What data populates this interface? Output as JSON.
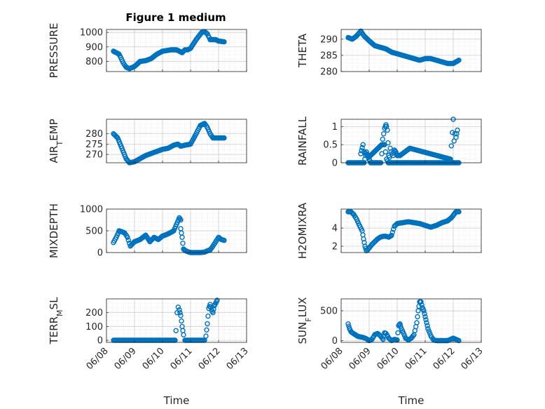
{
  "figure": {
    "title": "Figure 1 medium"
  },
  "chart_data": [
    {
      "type": "scatter",
      "ylabel": "PRESSURE",
      "ylim": [
        730,
        1020
      ],
      "yticks": [
        "800",
        "900",
        "1000"
      ],
      "ytick_values": [
        800,
        900,
        1000
      ],
      "xlim": [
        0,
        5
      ],
      "xticks": [],
      "grid": true,
      "segments": [
        {
          "x": [
            0.25,
            0.45,
            0.6,
            0.7,
            0.82,
            1.0,
            1.2,
            1.4,
            1.6,
            1.8,
            2.0,
            2.3,
            2.5,
            2.7,
            2.8,
            2.9,
            3.0,
            3.2,
            3.4,
            3.5,
            3.6,
            3.7,
            3.9,
            4.0,
            4.2
          ],
          "y": [
            870,
            850,
            790,
            760,
            750,
            765,
            800,
            805,
            820,
            850,
            870,
            880,
            880,
            860,
            880,
            880,
            890,
            950,
            1000,
            1005,
            990,
            950,
            950,
            940,
            935
          ]
        }
      ]
    },
    {
      "type": "scatter",
      "ylabel": "THETA",
      "ylim": [
        280,
        293
      ],
      "yticks": [
        "280",
        "285",
        "290"
      ],
      "ytick_values": [
        280,
        285,
        290
      ],
      "xlim": [
        0,
        5
      ],
      "xticks": [],
      "grid": true,
      "segments": [
        {
          "x": [
            0.25,
            0.4,
            0.55,
            0.7,
            0.82,
            1.0,
            1.2,
            1.4,
            1.6,
            1.8,
            2.0,
            2.2,
            2.4,
            2.6,
            2.8,
            3.0,
            3.2,
            3.4,
            3.6,
            3.8,
            4.0,
            4.2
          ],
          "y": [
            290.5,
            290,
            291,
            292.5,
            291,
            289.5,
            288,
            287.5,
            287,
            286,
            285.5,
            285,
            284.5,
            284,
            283.5,
            284,
            284,
            283.5,
            283,
            282.5,
            282.5,
            283.5
          ]
        }
      ]
    },
    {
      "type": "scatter",
      "ylabel": "AIR_TEMP",
      "ylim": [
        266,
        287
      ],
      "yticks": [
        "270",
        "275",
        "280"
      ],
      "ytick_values": [
        270,
        275,
        280
      ],
      "xlim": [
        0,
        5
      ],
      "xticks": [],
      "grid": true,
      "segments": [
        {
          "x": [
            0.25,
            0.4,
            0.55,
            0.7,
            0.82,
            1.0,
            1.2,
            1.4,
            1.6,
            1.8,
            2.0,
            2.2,
            2.4,
            2.55,
            2.65,
            2.8,
            3.0,
            3.2,
            3.35,
            3.5,
            3.6,
            3.7,
            3.8,
            4.0,
            4.2
          ],
          "y": [
            280,
            278,
            273,
            268,
            266,
            266.5,
            268,
            269.5,
            270.5,
            271.5,
            272.5,
            273,
            274.5,
            275,
            274,
            274.5,
            275,
            280,
            284,
            285,
            283,
            280,
            278,
            278,
            278
          ]
        }
      ]
    },
    {
      "type": "scatter",
      "ylabel": "RAINFALL",
      "ylim": [
        0,
        1.2
      ],
      "yticks": [
        "0",
        "0.5",
        "1"
      ],
      "ytick_values": [
        0,
        0.5,
        1
      ],
      "xlim": [
        0,
        5
      ],
      "xticks": [],
      "grid": true,
      "segments": [
        {
          "x": [
            0.25,
            0.5,
            0.7,
            0.82,
            0.9,
            1.0,
            1.05,
            1.08,
            1.1,
            1.14,
            1.2,
            1.25,
            1.3,
            1.35,
            1.38,
            1.42,
            1.48,
            1.55,
            1.62,
            1.68,
            1.7,
            1.8,
            2.0,
            2.2,
            2.4,
            2.7,
            3.0,
            3.3,
            3.6,
            3.9,
            4.1,
            4.2
          ],
          "y": [
            0,
            0,
            0,
            0,
            0.3,
            0.1,
            0,
            0,
            0,
            0,
            0,
            0,
            0,
            0,
            0,
            0,
            0.5,
            0.5,
            0.1,
            0,
            0,
            0,
            0,
            0,
            0,
            0,
            0,
            0,
            0,
            0,
            0,
            0
          ]
        },
        {
          "x": [
            0.7,
            0.78,
            0.82,
            0.95,
            0.98,
            1.45,
            1.55,
            1.6,
            1.62,
            1.65,
            1.7,
            1.72,
            1.75,
            1.78,
            1.85,
            1.9,
            1.95,
            2.0,
            2.1,
            2.45,
            3.9,
            4.0,
            4.03,
            4.06,
            4.1,
            4.15
          ],
          "y": [
            0.25,
            0.5,
            0.3,
            0.2,
            0.15,
            0.5,
            0.95,
            1.05,
            1.0,
            0.9,
            0.2,
            0.15,
            0.4,
            0.3,
            0.2,
            0.35,
            0.3,
            0.2,
            0.2,
            0.4,
            0.1,
            1.2,
            0.6,
            0.8,
            0.7,
            0.9
          ]
        }
      ]
    },
    {
      "type": "scatter",
      "ylabel": "MIXDEPTH",
      "ylim": [
        0,
        1000
      ],
      "yticks": [
        "0",
        "500",
        "1000"
      ],
      "ytick_values": [
        0,
        500,
        1000
      ],
      "xlim": [
        0,
        5
      ],
      "xticks": [],
      "grid": true,
      "segments": [
        {
          "x": [
            0.25,
            0.35,
            0.45,
            0.55,
            0.65,
            0.75,
            0.85,
            1.0,
            1.2,
            1.4,
            1.55,
            1.7,
            1.85,
            2.0,
            2.2,
            2.4,
            2.5,
            2.6,
            2.65
          ],
          "y": [
            230,
            350,
            500,
            480,
            450,
            350,
            150,
            250,
            300,
            400,
            250,
            350,
            300,
            380,
            430,
            500,
            650,
            800,
            750
          ]
        },
        {
          "x": [
            2.65,
            2.7,
            2.75,
            2.8,
            2.9,
            3.0,
            3.1,
            3.2,
            3.35,
            3.5,
            3.6,
            3.7,
            3.8,
            3.9,
            4.0,
            4.1,
            4.2
          ],
          "y": [
            550,
            350,
            80,
            50,
            20,
            0,
            0,
            0,
            0,
            10,
            40,
            60,
            150,
            250,
            350,
            300,
            280
          ]
        }
      ]
    },
    {
      "type": "scatter",
      "ylabel": "H2OMIXRA",
      "ylim": [
        1.3,
        6.1
      ],
      "yticks": [
        "2",
        "4"
      ],
      "ytick_values": [
        2,
        4
      ],
      "xlim": [
        0,
        5
      ],
      "xticks": [],
      "grid": true,
      "segments": [
        {
          "x": [
            0.25,
            0.35,
            0.45,
            0.55,
            0.65,
            0.75,
            0.8,
            0.85,
            0.9,
            1.0,
            1.1,
            1.2,
            1.3,
            1.4,
            1.5,
            1.6,
            1.7,
            1.8,
            1.9,
            2.0,
            2.2,
            2.4,
            2.6,
            2.8,
            3.0,
            3.2,
            3.4,
            3.6,
            3.8,
            3.95,
            4.1,
            4.2
          ],
          "y": [
            5.8,
            5.8,
            5.5,
            5.0,
            4.3,
            3.7,
            2.8,
            2.0,
            1.5,
            1.8,
            2.2,
            2.5,
            2.8,
            3.0,
            3.1,
            3.1,
            3.0,
            3.2,
            4.2,
            4.5,
            4.6,
            4.7,
            4.6,
            4.5,
            4.3,
            4.1,
            4.3,
            4.6,
            4.8,
            5.2,
            5.8,
            5.8
          ]
        }
      ]
    },
    {
      "type": "scatter",
      "ylabel": "TERR_MSL",
      "ylim": [
        -15,
        300
      ],
      "yticks": [
        "0",
        "100",
        "200"
      ],
      "ytick_values": [
        0,
        100,
        200
      ],
      "xlim": [
        0,
        5
      ],
      "xticks": [
        "06/08",
        "06/09",
        "06/10",
        "06/11",
        "06/12",
        "06/13"
      ],
      "xtick_values": [
        0,
        1,
        2,
        3,
        4,
        5
      ],
      "xlabel": "Time",
      "grid": true,
      "segments": [
        {
          "x": [
            0.25,
            0.5,
            0.75,
            1.0,
            1.25,
            1.5,
            1.75,
            2.0,
            2.25,
            2.45
          ],
          "y": [
            0,
            0,
            0,
            0,
            0,
            0,
            0,
            0,
            0,
            0
          ]
        },
        {
          "x": [
            2.48,
            2.52,
            2.56,
            2.6,
            2.65,
            2.7,
            2.75
          ],
          "y": [
            70,
            200,
            240,
            220,
            180,
            100,
            40
          ]
        },
        {
          "x": [
            2.8,
            3.0,
            3.2,
            3.4,
            3.5
          ],
          "y": [
            0,
            0,
            0,
            0,
            0
          ]
        },
        {
          "x": [
            3.55,
            3.6,
            3.65,
            3.7,
            3.75,
            3.8,
            3.85,
            3.9,
            3.95
          ],
          "y": [
            30,
            120,
            230,
            260,
            220,
            200,
            250,
            270,
            290
          ]
        }
      ]
    },
    {
      "type": "scatter",
      "ylabel": "SUN_FLUX",
      "ylim": [
        -30,
        700
      ],
      "yticks": [
        "0",
        "500"
      ],
      "ytick_values": [
        0,
        500
      ],
      "xlim": [
        0,
        5
      ],
      "xticks": [
        "06/08",
        "06/09",
        "06/10",
        "06/11",
        "06/12",
        "06/13"
      ],
      "xtick_values": [
        0,
        1,
        2,
        3,
        4,
        5
      ],
      "xlabel": "Time",
      "grid": true,
      "segments": [
        {
          "x": [
            0.25,
            0.3,
            0.35,
            0.4,
            0.5,
            0.6,
            0.7,
            0.8,
            0.9,
            1.0,
            1.1,
            1.2,
            1.3,
            1.4,
            1.5,
            1.55,
            1.6,
            1.7,
            1.8,
            1.9,
            2.0,
            2.05,
            2.1,
            2.15,
            2.2,
            2.3,
            2.4,
            2.5,
            2.6,
            2.7,
            2.75,
            2.8,
            2.85,
            2.9,
            2.95,
            3.0,
            3.05,
            3.1,
            3.2,
            3.3,
            3.4,
            3.5,
            3.6,
            3.7,
            3.8,
            3.9,
            4.0,
            4.1,
            4.2
          ],
          "y": [
            280,
            200,
            150,
            130,
            100,
            70,
            60,
            50,
            30,
            0,
            20,
            100,
            120,
            80,
            20,
            130,
            120,
            40,
            0,
            20,
            10,
            250,
            280,
            200,
            150,
            40,
            10,
            40,
            100,
            300,
            500,
            650,
            650,
            550,
            500,
            400,
            300,
            200,
            80,
            10,
            0,
            0,
            0,
            0,
            0,
            20,
            40,
            20,
            0
          ]
        }
      ]
    }
  ]
}
